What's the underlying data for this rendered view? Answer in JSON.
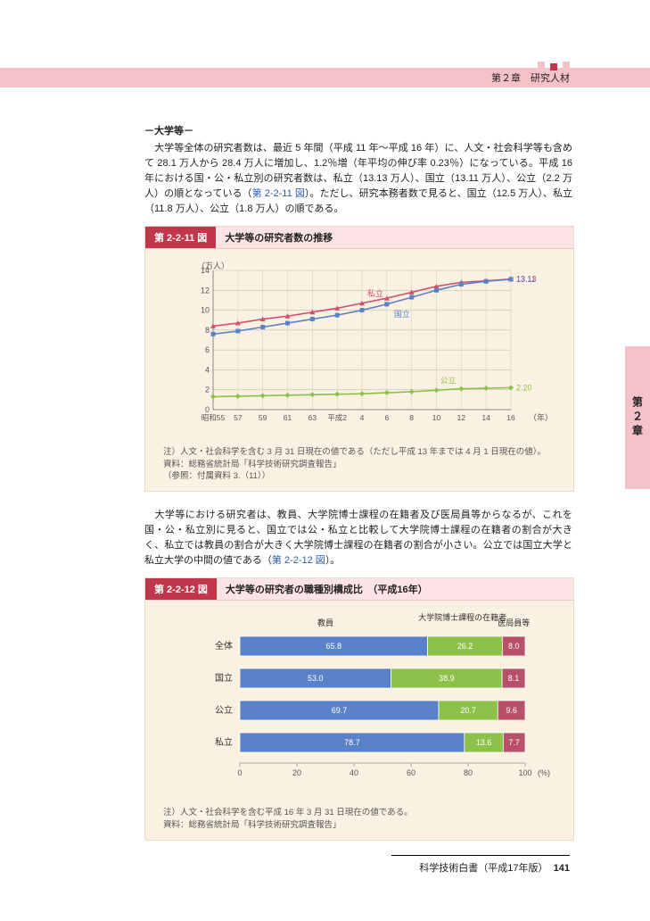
{
  "header": {
    "chapter_label": "第２章　研究人材"
  },
  "side_tab": {
    "label": "第２章"
  },
  "section": {
    "heading": "－大学等－",
    "para1_a": "　大学等全体の研究者数は、最近 5 年間（平成 11 年～平成 16 年）に、人文・社会科学等も含めて 28.1 万人から 28.4 万人に増加し、1.2％増（年平均の伸び率 0.23％）になっている。平成 16 年における国・公・私立別の研究者数は、私立（13.13 万人）、国立（13.11 万人）、公立（2.2 万人）の順となっている（",
    "link1": "第 2-2-11 図",
    "para1_b": "）。ただし、研究本務者数で見ると、国立（12.5 万人）、私立（11.8 万人）、公立（1.8 万人）の順である。",
    "para2_a": "　大学等における研究者は、教員、大学院博士課程の在籍者及び医局員等からなるが、これを国・公・私立別に見ると、国立では公・私立と比較して大学院博士課程の在籍者の割合が大きく、私立では教員の割合が大きく大学院博士課程の在籍者の割合が小さい。公立では国立大学と私立大学の中間の値である（",
    "link2": "第 2-2-12 図",
    "para2_b": "）。"
  },
  "fig11": {
    "tag": "第 2-2-11 図",
    "title": "大学等の研究者数の推移",
    "y_label": "（万人）",
    "x_label": "（年）",
    "ylim": [
      0,
      14
    ],
    "ytick_step": 2,
    "x_categories": [
      "昭和55",
      "57",
      "59",
      "61",
      "63",
      "平成2",
      "4",
      "6",
      "8",
      "10",
      "12",
      "14",
      "16"
    ],
    "series": [
      {
        "name": "私立",
        "color": "#d05070",
        "marker": "triangle",
        "values": [
          8.4,
          8.7,
          9.1,
          9.4,
          9.8,
          10.2,
          10.7,
          11.2,
          11.8,
          12.4,
          12.8,
          12.95,
          13.13
        ],
        "end_label": "13.13"
      },
      {
        "name": "国立",
        "color": "#5a82c8",
        "marker": "square",
        "values": [
          7.6,
          7.9,
          8.3,
          8.7,
          9.1,
          9.5,
          10.0,
          10.6,
          11.3,
          12.0,
          12.6,
          12.9,
          13.11
        ],
        "end_label": "13.11"
      },
      {
        "name": "公立",
        "color": "#8cc24a",
        "marker": "diamond",
        "values": [
          1.3,
          1.35,
          1.4,
          1.45,
          1.5,
          1.55,
          1.6,
          1.7,
          1.8,
          1.95,
          2.1,
          2.15,
          2.2
        ],
        "end_label": "2.20"
      }
    ],
    "inline_labels": {
      "shiritsu": "私立",
      "kokuritsu": "国立",
      "kouritsu": "公立"
    },
    "notes": [
      "注）人文・社会科学を含む 3 月 31 日現在の値である（ただし平成 13 年までは 4 月 1 日現在の値）。",
      "資料：総務省統計局「科学技術研究調査報告」",
      "（参照：付属資料 3.（11））"
    ],
    "plot": {
      "grid_color": "#c9c0a8",
      "axis_color": "#888",
      "bg": "#faf1e2"
    }
  },
  "fig12": {
    "tag": "第 2-2-12 図",
    "title": "大学等の研究者の職種別構成比　（平成16年）",
    "cat_labels": [
      "全体",
      "国立",
      "公立",
      "私立"
    ],
    "col_headers": {
      "kyoin": "教員",
      "hakushi": "大学院博士課程の在籍者",
      "ikyoku": "医局員等"
    },
    "colors": {
      "kyoin": "#5a82c8",
      "hakushi": "#8cc24a",
      "ikyoku": "#b8506a",
      "border": "#e8dec8"
    },
    "rows": [
      {
        "label": "全体",
        "v": [
          65.8,
          26.2,
          8.0
        ]
      },
      {
        "label": "国立",
        "v": [
          53.0,
          38.9,
          8.1
        ]
      },
      {
        "label": "公立",
        "v": [
          69.7,
          20.7,
          9.6
        ]
      },
      {
        "label": "私立",
        "v": [
          78.7,
          13.6,
          7.7
        ]
      }
    ],
    "x_ticks": [
      0,
      20,
      40,
      60,
      80,
      100
    ],
    "x_unit": "(%)",
    "notes": [
      "注）人文・社会科学を含む平成 16 年 3 月 31 日現在の値である。",
      "資料：総務省統計局「科学技術研究調査報告」"
    ]
  },
  "footer": {
    "text": "科学技術白書（平成17年版）",
    "page": "141"
  }
}
